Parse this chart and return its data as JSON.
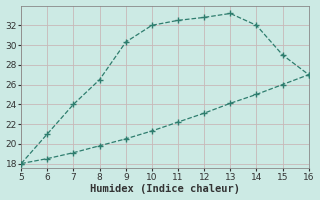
{
  "xlabel": "Humidex (Indice chaleur)",
  "line1_x": [
    5,
    6,
    7,
    8,
    9,
    10,
    11,
    12,
    13,
    14,
    15,
    16
  ],
  "line1_y": [
    18,
    21,
    24,
    26.5,
    30.3,
    32,
    32.5,
    32.8,
    33.2,
    32,
    29,
    27
  ],
  "line2_x": [
    5,
    6,
    7,
    8,
    9,
    10,
    11,
    12,
    13,
    14,
    15,
    16
  ],
  "line2_y": [
    18,
    18.5,
    19.1,
    19.8,
    20.5,
    21.3,
    22.2,
    23.1,
    24.1,
    25.0,
    26.0,
    27
  ],
  "line_color": "#2e7d6e",
  "bg_color": "#cceae4",
  "grid_color": "#c8b8b8",
  "xlim": [
    5,
    16
  ],
  "ylim": [
    17.5,
    34
  ],
  "xticks": [
    5,
    6,
    7,
    8,
    9,
    10,
    11,
    12,
    13,
    14,
    15,
    16
  ],
  "yticks": [
    18,
    20,
    22,
    24,
    26,
    28,
    30,
    32
  ],
  "tick_fontsize": 6.5,
  "xlabel_fontsize": 7.5,
  "marker": "+",
  "marker_size": 4,
  "linewidth": 0.9,
  "linestyle": "--"
}
